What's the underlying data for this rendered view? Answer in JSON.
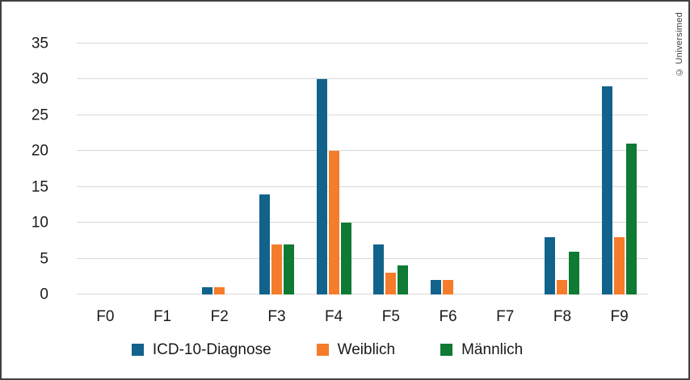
{
  "copyright": "© Universimed",
  "colors": {
    "icd": "#12638C",
    "weiblich": "#F57C2B",
    "maennlich": "#0E7A33",
    "gridline": "#d8d8d8",
    "frame_border": "#414141",
    "text": "#1a1a1a"
  },
  "chart_data": {
    "type": "bar",
    "title": "",
    "xlabel": "",
    "ylabel": "",
    "categories": [
      "F0",
      "F1",
      "F2",
      "F3",
      "F4",
      "F5",
      "F6",
      "F7",
      "F8",
      "F9"
    ],
    "series": [
      {
        "name": "ICD-10-Diagnose",
        "color": "#12638C",
        "values": [
          0,
          0,
          1,
          14,
          30,
          7,
          2,
          0,
          8,
          29
        ]
      },
      {
        "name": "Weiblich",
        "color": "#F57C2B",
        "values": [
          0,
          0,
          1,
          7,
          20,
          3,
          2,
          0,
          2,
          8
        ]
      },
      {
        "name": "Männlich",
        "color": "#0E7A33",
        "values": [
          0,
          0,
          0,
          7,
          10,
          4,
          0,
          0,
          6,
          21
        ]
      }
    ],
    "ylim": [
      0,
      35
    ],
    "yticks": [
      0,
      5,
      10,
      15,
      20,
      25,
      30,
      35
    ],
    "grid": "horizontal",
    "legend_position": "bottom"
  }
}
